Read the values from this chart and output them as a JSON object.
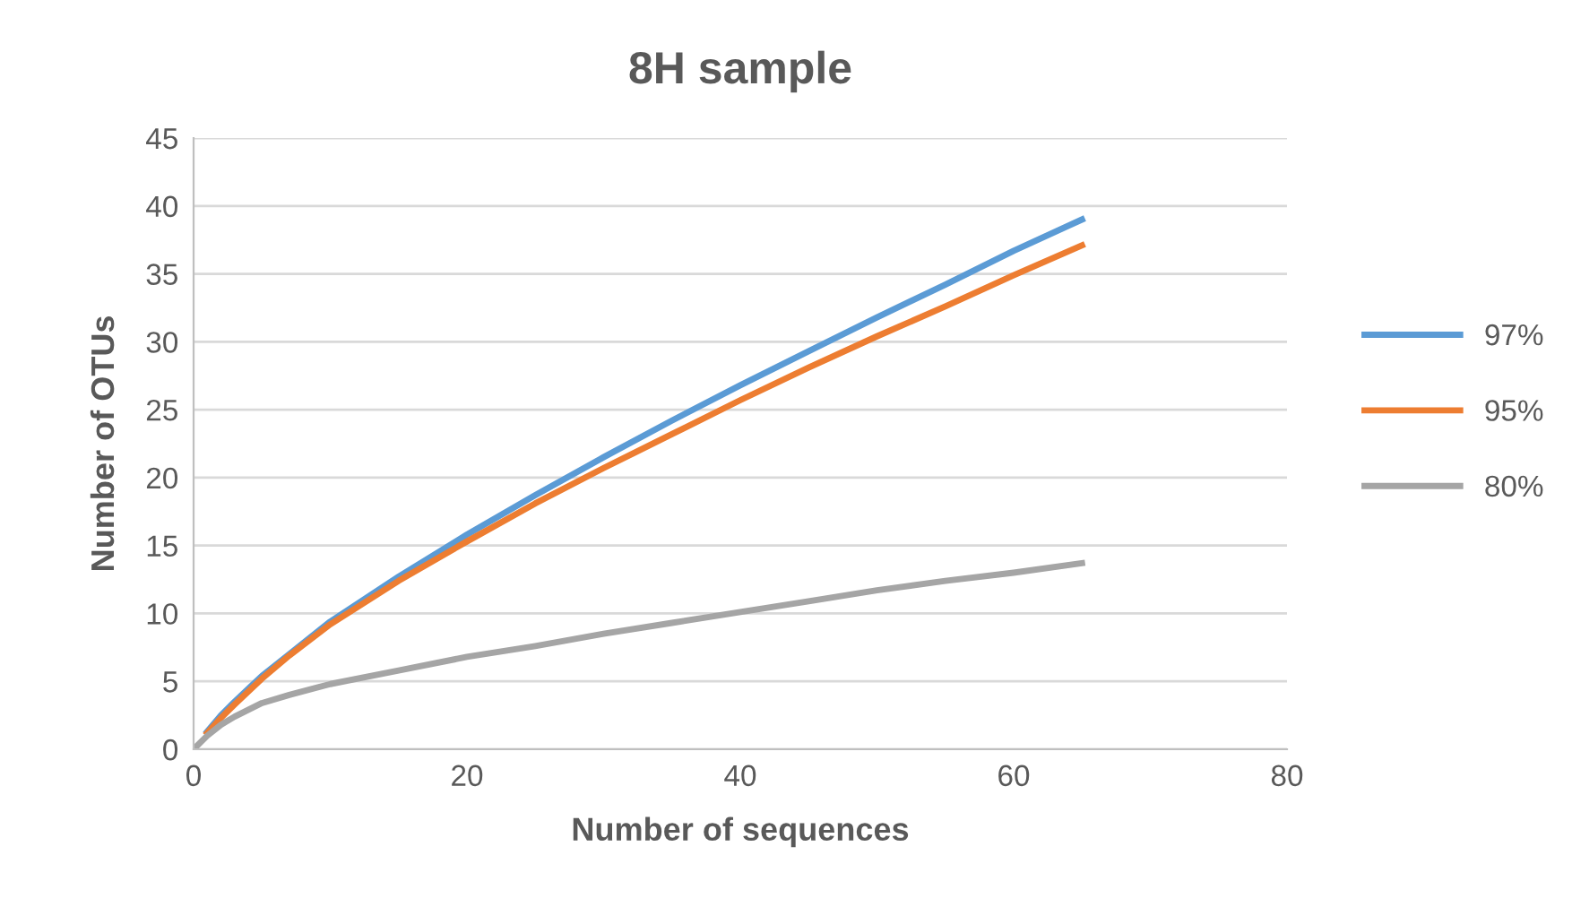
{
  "chart_data": {
    "type": "line",
    "title": "8H sample",
    "xlabel": "Number of sequences",
    "ylabel": "Number of OTUs",
    "x": [
      0,
      1,
      2,
      3,
      5,
      7,
      10,
      15,
      20,
      25,
      30,
      35,
      40,
      45,
      50,
      55,
      60,
      65
    ],
    "series": [
      {
        "name": "97%",
        "color": "#5b9bd5",
        "values": [
          null,
          1.3,
          2.5,
          3.5,
          5.4,
          7.0,
          9.4,
          12.7,
          15.8,
          18.7,
          21.5,
          24.2,
          26.8,
          29.3,
          31.8,
          34.2,
          36.7,
          39.0
        ]
      },
      {
        "name": "95%",
        "color": "#ed7d31",
        "values": [
          null,
          1.2,
          2.3,
          3.3,
          5.2,
          6.9,
          9.2,
          12.4,
          15.3,
          18.1,
          20.7,
          23.2,
          25.7,
          28.1,
          30.4,
          32.6,
          34.9,
          37.1
        ]
      },
      {
        "name": "80%",
        "color": "#a5a5a5",
        "values": [
          0,
          1.0,
          1.8,
          2.4,
          3.4,
          4.0,
          4.8,
          5.8,
          6.8,
          7.6,
          8.5,
          9.3,
          10.1,
          10.9,
          11.7,
          12.4,
          13.0,
          13.7
        ]
      }
    ],
    "xlim": [
      0,
      80
    ],
    "xticks": [
      0,
      20,
      40,
      60,
      80
    ],
    "ylim": [
      0,
      45
    ],
    "yticks": [
      0,
      5,
      10,
      15,
      20,
      25,
      30,
      35,
      40,
      45
    ],
    "grid": "y",
    "legend": "right",
    "marker": "none",
    "line_style": "solid"
  }
}
